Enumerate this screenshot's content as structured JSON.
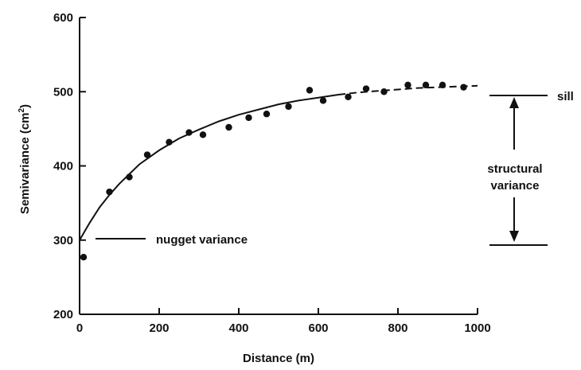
{
  "chart_data": {
    "type": "scatter",
    "xlabel": "Distance (m)",
    "ylabel": "Semivariance (cm",
    "ylabel_sup": "2",
    "ylabel_close": ")",
    "xlim": [
      0,
      1000
    ],
    "ylim": [
      200,
      600
    ],
    "xticks": [
      0,
      200,
      400,
      600,
      800,
      1000
    ],
    "yticks": [
      200,
      300,
      400,
      500,
      600
    ],
    "grid": false,
    "points": {
      "x": [
        10,
        75,
        125,
        170,
        225,
        275,
        310,
        375,
        425,
        470,
        525,
        578,
        612,
        675,
        720,
        765,
        825,
        870,
        912,
        965
      ],
      "y": [
        277,
        365,
        385,
        415,
        432,
        445,
        442,
        452,
        465,
        470,
        480,
        502,
        488,
        493,
        504,
        500,
        509,
        509,
        509,
        506
      ]
    },
    "model_curve": {
      "description_label": "",
      "x": [
        0,
        25,
        50,
        75,
        100,
        150,
        200,
        250,
        300,
        350,
        400,
        450,
        500,
        550,
        600,
        650,
        700,
        750,
        800,
        850,
        900,
        950,
        1000
      ],
      "y": [
        300,
        323,
        344,
        361,
        376,
        402,
        421,
        437,
        449,
        460,
        469,
        476,
        483,
        488,
        492,
        496,
        499,
        501,
        503,
        505,
        506,
        507,
        508
      ],
      "dashed_from_x": 650
    },
    "annotations": {
      "nugget": "nugget variance",
      "sill": "sill",
      "structural_line1": "structural",
      "structural_line2": "variance"
    },
    "reference_levels": {
      "sill": 496,
      "nugget": 292
    }
  }
}
